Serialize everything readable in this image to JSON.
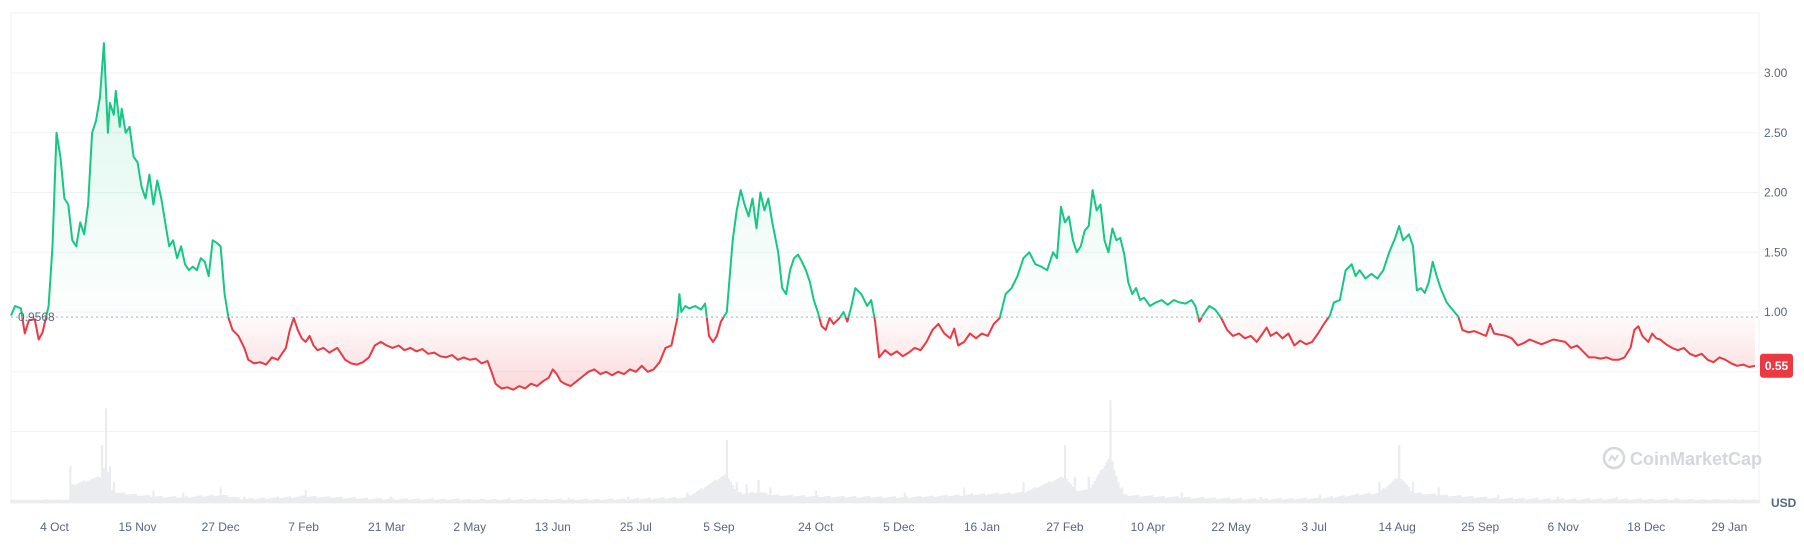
{
  "chart_data": {
    "type": "area",
    "currency_label": "USD",
    "watermark": "CoinMarketCap",
    "reference": {
      "label": "0.9568",
      "value": 0.9568
    },
    "current_price": {
      "label": "0.55",
      "value": 0.55
    },
    "ylim": [
      0.0,
      3.5
    ],
    "y_ticks": [
      {
        "label": "3.00",
        "value": 3.0
      },
      {
        "label": "2.50",
        "value": 2.5
      },
      {
        "label": "2.00",
        "value": 2.0
      },
      {
        "label": "1.50",
        "value": 1.5
      },
      {
        "label": "1.00",
        "value": 1.0
      }
    ],
    "x_ticks": [
      {
        "label": "4 Oct",
        "day": 10
      },
      {
        "label": "15 Nov",
        "day": 52
      },
      {
        "label": "27 Dec",
        "day": 94
      },
      {
        "label": "7 Feb",
        "day": 136
      },
      {
        "label": "21 Mar",
        "day": 178
      },
      {
        "label": "2 May",
        "day": 220
      },
      {
        "label": "13 Jun",
        "day": 262
      },
      {
        "label": "25 Jul",
        "day": 304
      },
      {
        "label": "5 Sep",
        "day": 346
      },
      {
        "label": "24 Oct",
        "day": 395
      },
      {
        "label": "5 Dec",
        "day": 437
      },
      {
        "label": "16 Jan",
        "day": 479
      },
      {
        "label": "27 Feb",
        "day": 521
      },
      {
        "label": "10 Apr",
        "day": 563
      },
      {
        "label": "22 May",
        "day": 605
      },
      {
        "label": "3 Jul",
        "day": 647
      },
      {
        "label": "14 Aug",
        "day": 689
      },
      {
        "label": "25 Sep",
        "day": 731
      },
      {
        "label": "6 Nov",
        "day": 773
      },
      {
        "label": "18 Dec",
        "day": 815
      },
      {
        "label": "29 Jan",
        "day": 857
      }
    ],
    "x_range": [
      -12,
      872
    ],
    "colors": {
      "up": "#16c784",
      "down": "#ea3943",
      "volume": "#eaecef",
      "grid": "#eff2f5"
    },
    "price": [
      [
        -12,
        0.97
      ],
      [
        -10,
        1.05
      ],
      [
        -7,
        1.03
      ],
      [
        -5,
        0.82
      ],
      [
        -3,
        0.93
      ],
      [
        0,
        0.94
      ],
      [
        2,
        0.77
      ],
      [
        4,
        0.83
      ],
      [
        7,
        1.05
      ],
      [
        9,
        1.55
      ],
      [
        11,
        2.5
      ],
      [
        13,
        2.3
      ],
      [
        15,
        1.95
      ],
      [
        17,
        1.9
      ],
      [
        19,
        1.6
      ],
      [
        21,
        1.55
      ],
      [
        23,
        1.75
      ],
      [
        25,
        1.65
      ],
      [
        27,
        1.9
      ],
      [
        29,
        2.5
      ],
      [
        31,
        2.6
      ],
      [
        33,
        2.8
      ],
      [
        35,
        3.25
      ],
      [
        37,
        2.5
      ],
      [
        38,
        2.75
      ],
      [
        40,
        2.65
      ],
      [
        41,
        2.85
      ],
      [
        43,
        2.55
      ],
      [
        44,
        2.7
      ],
      [
        46,
        2.5
      ],
      [
        48,
        2.55
      ],
      [
        50,
        2.3
      ],
      [
        52,
        2.25
      ],
      [
        54,
        2.05
      ],
      [
        56,
        1.95
      ],
      [
        58,
        2.15
      ],
      [
        60,
        1.9
      ],
      [
        62,
        2.1
      ],
      [
        64,
        1.95
      ],
      [
        66,
        1.75
      ],
      [
        68,
        1.55
      ],
      [
        70,
        1.6
      ],
      [
        72,
        1.45
      ],
      [
        74,
        1.55
      ],
      [
        76,
        1.4
      ],
      [
        78,
        1.35
      ],
      [
        80,
        1.38
      ],
      [
        82,
        1.35
      ],
      [
        84,
        1.45
      ],
      [
        86,
        1.42
      ],
      [
        88,
        1.3
      ],
      [
        90,
        1.6
      ],
      [
        92,
        1.58
      ],
      [
        94,
        1.55
      ],
      [
        96,
        1.15
      ],
      [
        98,
        0.95
      ],
      [
        100,
        0.85
      ],
      [
        103,
        0.8
      ],
      [
        106,
        0.7
      ],
      [
        108,
        0.6
      ],
      [
        111,
        0.57
      ],
      [
        114,
        0.58
      ],
      [
        117,
        0.56
      ],
      [
        120,
        0.62
      ],
      [
        123,
        0.6
      ],
      [
        125,
        0.65
      ],
      [
        127,
        0.7
      ],
      [
        129,
        0.85
      ],
      [
        131,
        0.95
      ],
      [
        133,
        0.85
      ],
      [
        135,
        0.78
      ],
      [
        137,
        0.75
      ],
      [
        139,
        0.8
      ],
      [
        141,
        0.72
      ],
      [
        143,
        0.68
      ],
      [
        146,
        0.7
      ],
      [
        149,
        0.66
      ],
      [
        151,
        0.68
      ],
      [
        153,
        0.7
      ],
      [
        155,
        0.65
      ],
      [
        157,
        0.6
      ],
      [
        160,
        0.57
      ],
      [
        163,
        0.56
      ],
      [
        166,
        0.58
      ],
      [
        169,
        0.62
      ],
      [
        172,
        0.72
      ],
      [
        175,
        0.75
      ],
      [
        178,
        0.72
      ],
      [
        181,
        0.7
      ],
      [
        184,
        0.72
      ],
      [
        187,
        0.68
      ],
      [
        190,
        0.7
      ],
      [
        193,
        0.67
      ],
      [
        196,
        0.69
      ],
      [
        199,
        0.65
      ],
      [
        202,
        0.66
      ],
      [
        205,
        0.63
      ],
      [
        208,
        0.62
      ],
      [
        211,
        0.64
      ],
      [
        214,
        0.6
      ],
      [
        217,
        0.62
      ],
      [
        220,
        0.6
      ],
      [
        223,
        0.61
      ],
      [
        226,
        0.57
      ],
      [
        229,
        0.59
      ],
      [
        231,
        0.5
      ],
      [
        233,
        0.4
      ],
      [
        236,
        0.36
      ],
      [
        239,
        0.37
      ],
      [
        242,
        0.35
      ],
      [
        245,
        0.38
      ],
      [
        248,
        0.36
      ],
      [
        251,
        0.4
      ],
      [
        254,
        0.38
      ],
      [
        257,
        0.42
      ],
      [
        260,
        0.45
      ],
      [
        262,
        0.52
      ],
      [
        264,
        0.48
      ],
      [
        266,
        0.42
      ],
      [
        268,
        0.4
      ],
      [
        271,
        0.38
      ],
      [
        274,
        0.42
      ],
      [
        277,
        0.46
      ],
      [
        280,
        0.5
      ],
      [
        283,
        0.52
      ],
      [
        286,
        0.48
      ],
      [
        289,
        0.5
      ],
      [
        292,
        0.47
      ],
      [
        295,
        0.5
      ],
      [
        298,
        0.48
      ],
      [
        301,
        0.52
      ],
      [
        304,
        0.5
      ],
      [
        307,
        0.55
      ],
      [
        310,
        0.5
      ],
      [
        313,
        0.52
      ],
      [
        316,
        0.58
      ],
      [
        319,
        0.7
      ],
      [
        322,
        0.72
      ],
      [
        325,
        0.95
      ],
      [
        326,
        1.15
      ],
      [
        327,
        1.0
      ],
      [
        329,
        1.05
      ],
      [
        331,
        1.03
      ],
      [
        334,
        1.05
      ],
      [
        337,
        1.02
      ],
      [
        339,
        1.07
      ],
      [
        341,
        0.8
      ],
      [
        343,
        0.75
      ],
      [
        345,
        0.8
      ],
      [
        347,
        0.92
      ],
      [
        350,
        1.0
      ],
      [
        353,
        1.6
      ],
      [
        355,
        1.85
      ],
      [
        357,
        2.02
      ],
      [
        359,
        1.9
      ],
      [
        361,
        1.8
      ],
      [
        363,
        1.95
      ],
      [
        365,
        1.7
      ],
      [
        367,
        2.0
      ],
      [
        369,
        1.85
      ],
      [
        371,
        1.95
      ],
      [
        373,
        1.75
      ],
      [
        376,
        1.5
      ],
      [
        378,
        1.2
      ],
      [
        380,
        1.15
      ],
      [
        382,
        1.35
      ],
      [
        384,
        1.45
      ],
      [
        386,
        1.48
      ],
      [
        388,
        1.42
      ],
      [
        390,
        1.35
      ],
      [
        392,
        1.25
      ],
      [
        394,
        1.1
      ],
      [
        396,
        1.0
      ],
      [
        398,
        0.88
      ],
      [
        400,
        0.85
      ],
      [
        402,
        0.95
      ],
      [
        404,
        0.9
      ],
      [
        407,
        0.95
      ],
      [
        409,
        1.0
      ],
      [
        411,
        0.92
      ],
      [
        413,
        1.05
      ],
      [
        415,
        1.2
      ],
      [
        418,
        1.15
      ],
      [
        421,
        1.05
      ],
      [
        423,
        1.1
      ],
      [
        425,
        0.92
      ],
      [
        427,
        0.62
      ],
      [
        430,
        0.68
      ],
      [
        433,
        0.64
      ],
      [
        436,
        0.67
      ],
      [
        439,
        0.63
      ],
      [
        442,
        0.66
      ],
      [
        445,
        0.7
      ],
      [
        448,
        0.68
      ],
      [
        451,
        0.75
      ],
      [
        454,
        0.85
      ],
      [
        457,
        0.9
      ],
      [
        460,
        0.82
      ],
      [
        463,
        0.78
      ],
      [
        465,
        0.86
      ],
      [
        467,
        0.72
      ],
      [
        470,
        0.75
      ],
      [
        473,
        0.82
      ],
      [
        476,
        0.78
      ],
      [
        479,
        0.82
      ],
      [
        482,
        0.8
      ],
      [
        485,
        0.9
      ],
      [
        488,
        0.95
      ],
      [
        491,
        1.15
      ],
      [
        494,
        1.2
      ],
      [
        497,
        1.3
      ],
      [
        500,
        1.45
      ],
      [
        503,
        1.5
      ],
      [
        506,
        1.4
      ],
      [
        509,
        1.38
      ],
      [
        512,
        1.35
      ],
      [
        515,
        1.5
      ],
      [
        517,
        1.45
      ],
      [
        519,
        1.88
      ],
      [
        521,
        1.75
      ],
      [
        523,
        1.8
      ],
      [
        525,
        1.6
      ],
      [
        527,
        1.5
      ],
      [
        529,
        1.55
      ],
      [
        531,
        1.68
      ],
      [
        533,
        1.72
      ],
      [
        535,
        2.02
      ],
      [
        537,
        1.85
      ],
      [
        539,
        1.9
      ],
      [
        541,
        1.6
      ],
      [
        543,
        1.5
      ],
      [
        545,
        1.7
      ],
      [
        547,
        1.6
      ],
      [
        549,
        1.62
      ],
      [
        551,
        1.48
      ],
      [
        553,
        1.25
      ],
      [
        555,
        1.15
      ],
      [
        557,
        1.2
      ],
      [
        559,
        1.1
      ],
      [
        561,
        1.12
      ],
      [
        564,
        1.05
      ],
      [
        567,
        1.08
      ],
      [
        570,
        1.1
      ],
      [
        573,
        1.06
      ],
      [
        576,
        1.1
      ],
      [
        579,
        1.08
      ],
      [
        582,
        1.07
      ],
      [
        585,
        1.1
      ],
      [
        587,
        1.05
      ],
      [
        589,
        0.92
      ],
      [
        591,
        0.98
      ],
      [
        594,
        1.05
      ],
      [
        597,
        1.02
      ],
      [
        600,
        0.95
      ],
      [
        603,
        0.85
      ],
      [
        606,
        0.8
      ],
      [
        609,
        0.82
      ],
      [
        612,
        0.78
      ],
      [
        615,
        0.8
      ],
      [
        618,
        0.75
      ],
      [
        621,
        0.82
      ],
      [
        623,
        0.87
      ],
      [
        625,
        0.8
      ],
      [
        628,
        0.83
      ],
      [
        631,
        0.78
      ],
      [
        634,
        0.82
      ],
      [
        637,
        0.72
      ],
      [
        640,
        0.76
      ],
      [
        643,
        0.73
      ],
      [
        646,
        0.75
      ],
      [
        649,
        0.82
      ],
      [
        652,
        0.9
      ],
      [
        655,
        0.97
      ],
      [
        657,
        1.08
      ],
      [
        660,
        1.1
      ],
      [
        663,
        1.35
      ],
      [
        666,
        1.4
      ],
      [
        668,
        1.3
      ],
      [
        670,
        1.35
      ],
      [
        673,
        1.28
      ],
      [
        676,
        1.32
      ],
      [
        679,
        1.28
      ],
      [
        682,
        1.35
      ],
      [
        685,
        1.5
      ],
      [
        688,
        1.62
      ],
      [
        690,
        1.72
      ],
      [
        692,
        1.6
      ],
      [
        695,
        1.65
      ],
      [
        697,
        1.55
      ],
      [
        699,
        1.18
      ],
      [
        701,
        1.2
      ],
      [
        703,
        1.16
      ],
      [
        705,
        1.25
      ],
      [
        707,
        1.42
      ],
      [
        709,
        1.3
      ],
      [
        711,
        1.2
      ],
      [
        714,
        1.08
      ],
      [
        717,
        1.02
      ],
      [
        720,
        0.96
      ],
      [
        722,
        0.85
      ],
      [
        725,
        0.83
      ],
      [
        728,
        0.84
      ],
      [
        731,
        0.82
      ],
      [
        734,
        0.8
      ],
      [
        736,
        0.9
      ],
      [
        738,
        0.82
      ],
      [
        741,
        0.81
      ],
      [
        744,
        0.8
      ],
      [
        747,
        0.78
      ],
      [
        750,
        0.72
      ],
      [
        753,
        0.74
      ],
      [
        756,
        0.77
      ],
      [
        759,
        0.75
      ],
      [
        762,
        0.73
      ],
      [
        765,
        0.75
      ],
      [
        768,
        0.77
      ],
      [
        771,
        0.76
      ],
      [
        774,
        0.75
      ],
      [
        777,
        0.7
      ],
      [
        780,
        0.72
      ],
      [
        783,
        0.67
      ],
      [
        786,
        0.62
      ],
      [
        789,
        0.62
      ],
      [
        792,
        0.61
      ],
      [
        795,
        0.62
      ],
      [
        798,
        0.6
      ],
      [
        801,
        0.6
      ],
      [
        804,
        0.62
      ],
      [
        807,
        0.7
      ],
      [
        809,
        0.85
      ],
      [
        811,
        0.88
      ],
      [
        813,
        0.8
      ],
      [
        816,
        0.75
      ],
      [
        818,
        0.82
      ],
      [
        820,
        0.78
      ],
      [
        822,
        0.77
      ],
      [
        825,
        0.73
      ],
      [
        828,
        0.7
      ],
      [
        831,
        0.68
      ],
      [
        834,
        0.7
      ],
      [
        837,
        0.65
      ],
      [
        840,
        0.63
      ],
      [
        843,
        0.65
      ],
      [
        846,
        0.6
      ],
      [
        849,
        0.58
      ],
      [
        852,
        0.62
      ],
      [
        855,
        0.6
      ],
      [
        858,
        0.57
      ],
      [
        861,
        0.55
      ],
      [
        864,
        0.56
      ],
      [
        867,
        0.54
      ],
      [
        870,
        0.55
      ]
    ],
    "volume": [
      [
        18,
        0.35
      ],
      [
        34,
        0.55
      ],
      [
        36,
        0.9
      ],
      [
        38,
        0.35
      ],
      [
        40,
        0.2
      ],
      [
        60,
        0.12
      ],
      [
        75,
        0.1
      ],
      [
        94,
        0.15
      ],
      [
        106,
        0.06
      ],
      [
        137,
        0.12
      ],
      [
        180,
        0.06
      ],
      [
        240,
        0.05
      ],
      [
        270,
        0.05
      ],
      [
        300,
        0.06
      ],
      [
        330,
        0.1
      ],
      [
        350,
        0.6
      ],
      [
        355,
        0.2
      ],
      [
        360,
        0.18
      ],
      [
        366,
        0.22
      ],
      [
        372,
        0.15
      ],
      [
        395,
        0.12
      ],
      [
        440,
        0.1
      ],
      [
        470,
        0.15
      ],
      [
        500,
        0.2
      ],
      [
        521,
        0.55
      ],
      [
        526,
        0.25
      ],
      [
        533,
        0.25
      ],
      [
        544,
        0.98
      ],
      [
        550,
        0.15
      ],
      [
        580,
        0.1
      ],
      [
        620,
        0.06
      ],
      [
        650,
        0.08
      ],
      [
        680,
        0.2
      ],
      [
        690,
        0.55
      ],
      [
        697,
        0.2
      ],
      [
        710,
        0.15
      ],
      [
        740,
        0.08
      ],
      [
        770,
        0.06
      ],
      [
        800,
        0.06
      ],
      [
        830,
        0.05
      ],
      [
        860,
        0.04
      ]
    ]
  }
}
